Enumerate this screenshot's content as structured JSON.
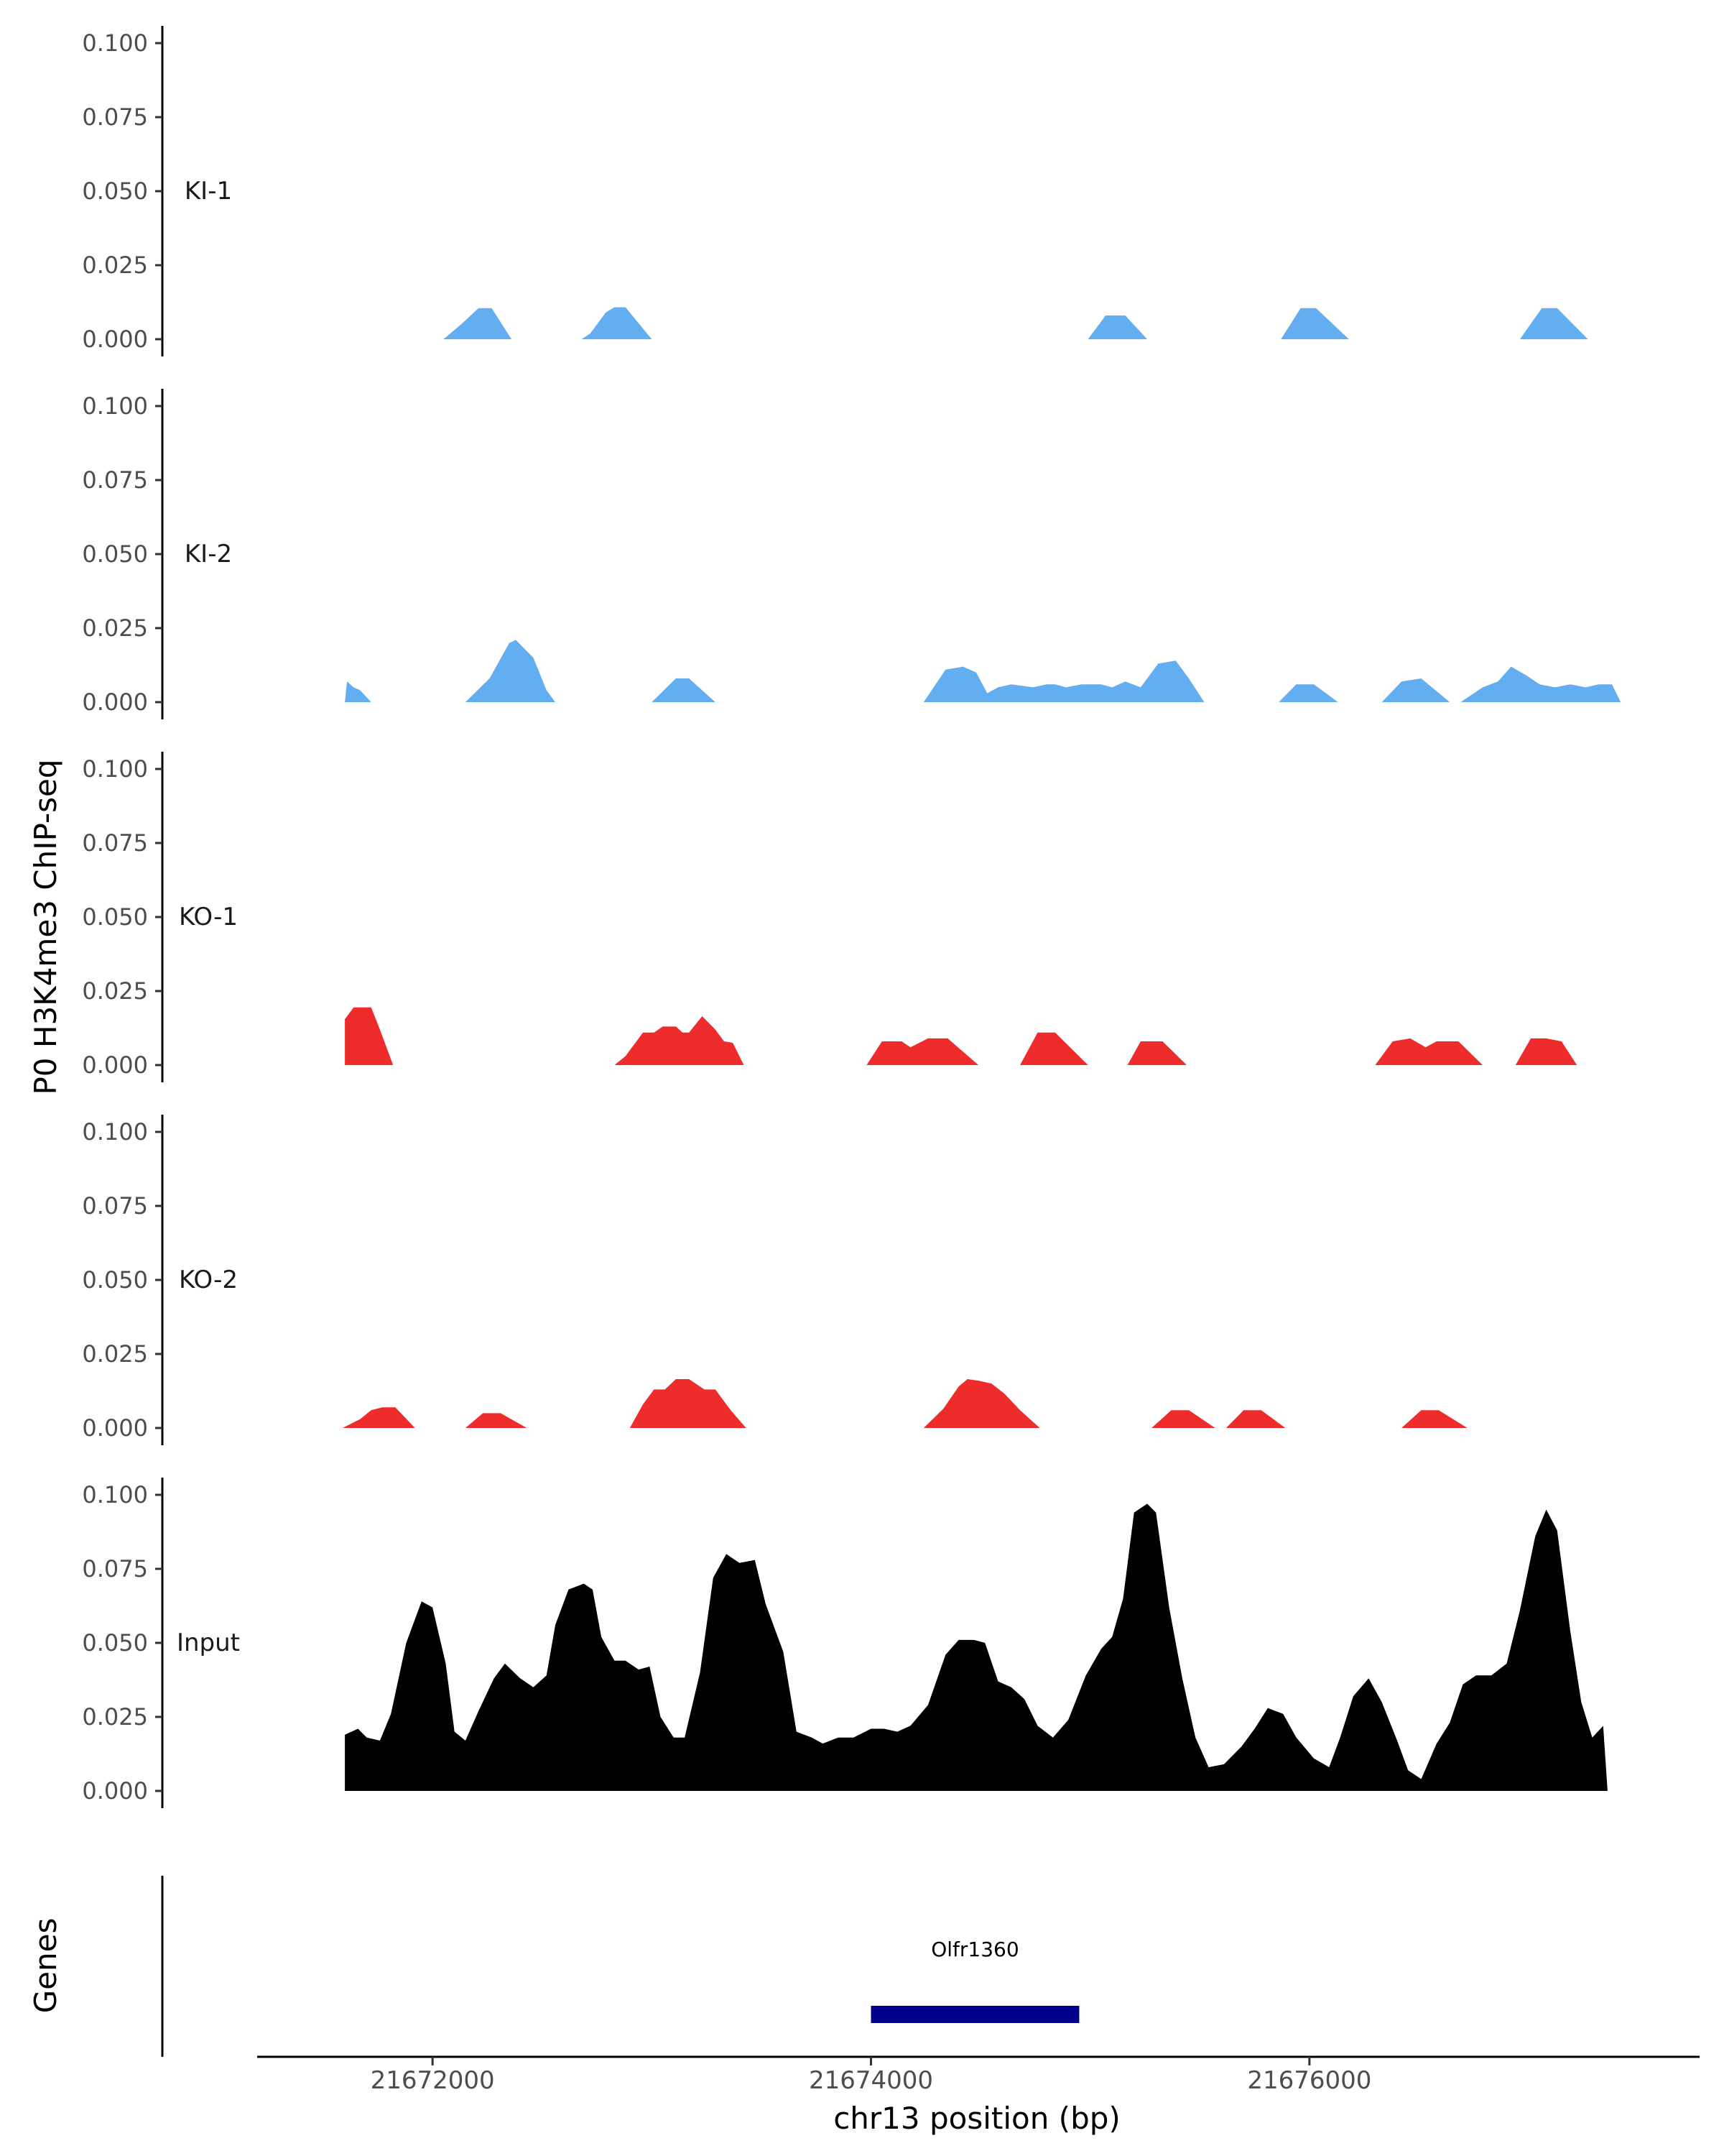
{
  "chart_data": {
    "type": "area",
    "ylabel": "P0 H3K4me3 ChIP-seq",
    "xlabel": "chr13 position (bp)",
    "y_ticks": [
      0.0,
      0.025,
      0.05,
      0.075,
      0.1
    ],
    "y_tick_labels": [
      "0.000",
      "0.025",
      "0.050",
      "0.075",
      "0.100"
    ],
    "ylim": [
      0,
      0.1
    ],
    "xlim": [
      21671200,
      21677760
    ],
    "x_ticks": [
      21672000,
      21674000,
      21676000
    ],
    "x_tick_labels": [
      "21672000",
      "21674000",
      "21676000"
    ],
    "colors": {
      "KI": "#63aef0",
      "KO": "#ee2c2c",
      "Input": "#000000",
      "gene": "#00008b"
    },
    "tracks": [
      {
        "name": "KI-1",
        "color": "#63aef0",
        "points": [
          [
            21671655,
            0
          ],
          [
            21672050,
            0
          ],
          [
            21672130,
            0.005
          ],
          [
            21672210,
            0.0105
          ],
          [
            21672270,
            0.0105
          ],
          [
            21672360,
            0
          ],
          [
            21672680,
            0
          ],
          [
            21672720,
            0.002
          ],
          [
            21672790,
            0.009
          ],
          [
            21672830,
            0.0108
          ],
          [
            21672880,
            0.0108
          ],
          [
            21673000,
            0
          ],
          [
            21674990,
            0
          ],
          [
            21675070,
            0.008
          ],
          [
            21675160,
            0.008
          ],
          [
            21675260,
            0
          ],
          [
            21675870,
            0
          ],
          [
            21675960,
            0.0105
          ],
          [
            21676030,
            0.0105
          ],
          [
            21676180,
            0
          ],
          [
            21676960,
            0
          ],
          [
            21677060,
            0.0105
          ],
          [
            21677130,
            0.0105
          ],
          [
            21677270,
            0
          ]
        ]
      },
      {
        "name": "KI-2",
        "color": "#63aef0",
        "points": [
          [
            21671600,
            0
          ],
          [
            21671610,
            0.007
          ],
          [
            21671640,
            0.005
          ],
          [
            21671670,
            0.004
          ],
          [
            21671720,
            0
          ],
          [
            21672150,
            0
          ],
          [
            21672260,
            0.008
          ],
          [
            21672350,
            0.02
          ],
          [
            21672380,
            0.021
          ],
          [
            21672460,
            0.015
          ],
          [
            21672520,
            0.004
          ],
          [
            21672560,
            0
          ],
          [
            21673000,
            0
          ],
          [
            21673110,
            0.008
          ],
          [
            21673170,
            0.008
          ],
          [
            21673290,
            0
          ],
          [
            21674240,
            0
          ],
          [
            21674340,
            0.011
          ],
          [
            21674420,
            0.012
          ],
          [
            21674480,
            0.01
          ],
          [
            21674530,
            0.003
          ],
          [
            21674580,
            0.005
          ],
          [
            21674640,
            0.006
          ],
          [
            21674740,
            0.005
          ],
          [
            21674800,
            0.006
          ],
          [
            21674840,
            0.006
          ],
          [
            21674890,
            0.005
          ],
          [
            21674960,
            0.006
          ],
          [
            21675050,
            0.006
          ],
          [
            21675100,
            0.005
          ],
          [
            21675160,
            0.007
          ],
          [
            21675230,
            0.005
          ],
          [
            21675310,
            0.013
          ],
          [
            21675390,
            0.014
          ],
          [
            21675450,
            0.008
          ],
          [
            21675520,
            0
          ],
          [
            21675860,
            0
          ],
          [
            21675940,
            0.006
          ],
          [
            21676020,
            0.006
          ],
          [
            21676130,
            0
          ],
          [
            21676330,
            0
          ],
          [
            21676420,
            0.007
          ],
          [
            21676510,
            0.008
          ],
          [
            21676640,
            0
          ],
          [
            21676690,
            0
          ],
          [
            21676790,
            0.005
          ],
          [
            21676860,
            0.007
          ],
          [
            21676920,
            0.012
          ],
          [
            21676990,
            0.009
          ],
          [
            21677050,
            0.006
          ],
          [
            21677120,
            0.005
          ],
          [
            21677190,
            0.006
          ],
          [
            21677260,
            0.005
          ],
          [
            21677320,
            0.006
          ],
          [
            21677380,
            0.006
          ],
          [
            21677420,
            0
          ]
        ]
      },
      {
        "name": "KO-1",
        "color": "#ee2c2c",
        "points": [
          [
            21671600,
            0
          ],
          [
            21671600,
            0.0155
          ],
          [
            21671640,
            0.0195
          ],
          [
            21671690,
            0.0195
          ],
          [
            21671720,
            0.0195
          ],
          [
            21671760,
            0.012
          ],
          [
            21671820,
            0
          ],
          [
            21672830,
            0
          ],
          [
            21672880,
            0.003
          ],
          [
            21672960,
            0.011
          ],
          [
            21673010,
            0.011
          ],
          [
            21673050,
            0.013
          ],
          [
            21673110,
            0.013
          ],
          [
            21673140,
            0.011
          ],
          [
            21673170,
            0.011
          ],
          [
            21673230,
            0.0165
          ],
          [
            21673290,
            0.012
          ],
          [
            21673330,
            0.008
          ],
          [
            21673370,
            0.0075
          ],
          [
            21673420,
            0
          ],
          [
            21673980,
            0
          ],
          [
            21674050,
            0.008
          ],
          [
            21674140,
            0.008
          ],
          [
            21674180,
            0.006
          ],
          [
            21674260,
            0.009
          ],
          [
            21674350,
            0.009
          ],
          [
            21674490,
            0
          ],
          [
            21674680,
            0
          ],
          [
            21674760,
            0.011
          ],
          [
            21674840,
            0.011
          ],
          [
            21674990,
            0
          ],
          [
            21675170,
            0
          ],
          [
            21675230,
            0.008
          ],
          [
            21675330,
            0.008
          ],
          [
            21675440,
            0
          ],
          [
            21676300,
            0
          ],
          [
            21676380,
            0.008
          ],
          [
            21676460,
            0.009
          ],
          [
            21676530,
            0.006
          ],
          [
            21676580,
            0.008
          ],
          [
            21676680,
            0.008
          ],
          [
            21676790,
            0
          ],
          [
            21676940,
            0
          ],
          [
            21677010,
            0.009
          ],
          [
            21677080,
            0.009
          ],
          [
            21677150,
            0.008
          ],
          [
            21677220,
            0
          ]
        ]
      },
      {
        "name": "KO-2",
        "color": "#ee2c2c",
        "points": [
          [
            21671590,
            0
          ],
          [
            21671670,
            0.003
          ],
          [
            21671720,
            0.006
          ],
          [
            21671770,
            0.007
          ],
          [
            21671830,
            0.007
          ],
          [
            21671920,
            0
          ],
          [
            21672150,
            0
          ],
          [
            21672230,
            0.005
          ],
          [
            21672310,
            0.005
          ],
          [
            21672430,
            0
          ],
          [
            21672900,
            0
          ],
          [
            21672960,
            0.008
          ],
          [
            21673010,
            0.013
          ],
          [
            21673060,
            0.013
          ],
          [
            21673110,
            0.0165
          ],
          [
            21673170,
            0.0165
          ],
          [
            21673240,
            0.013
          ],
          [
            21673290,
            0.013
          ],
          [
            21673360,
            0.006
          ],
          [
            21673430,
            0
          ],
          [
            21674240,
            0
          ],
          [
            21674330,
            0.0065
          ],
          [
            21674400,
            0.014
          ],
          [
            21674440,
            0.0165
          ],
          [
            21674490,
            0.016
          ],
          [
            21674550,
            0.015
          ],
          [
            21674610,
            0.0115
          ],
          [
            21674680,
            0.006
          ],
          [
            21674770,
            0
          ],
          [
            21675280,
            0
          ],
          [
            21675370,
            0.006
          ],
          [
            21675450,
            0.006
          ],
          [
            21675570,
            0
          ],
          [
            21675620,
            0
          ],
          [
            21675700,
            0.006
          ],
          [
            21675780,
            0.006
          ],
          [
            21675890,
            0
          ],
          [
            21676420,
            0
          ],
          [
            21676510,
            0.006
          ],
          [
            21676590,
            0.006
          ],
          [
            21676720,
            0
          ]
        ]
      },
      {
        "name": "Input",
        "color": "#000000",
        "points": [
          [
            21671600,
            0
          ],
          [
            21671600,
            0.019
          ],
          [
            21671660,
            0.021
          ],
          [
            21671700,
            0.018
          ],
          [
            21671760,
            0.017
          ],
          [
            21671810,
            0.026
          ],
          [
            21671880,
            0.05
          ],
          [
            21671950,
            0.064
          ],
          [
            21672000,
            0.062
          ],
          [
            21672060,
            0.043
          ],
          [
            21672100,
            0.02
          ],
          [
            21672150,
            0.017
          ],
          [
            21672210,
            0.027
          ],
          [
            21672280,
            0.038
          ],
          [
            21672330,
            0.043
          ],
          [
            21672400,
            0.038
          ],
          [
            21672460,
            0.035
          ],
          [
            21672520,
            0.039
          ],
          [
            21672560,
            0.056
          ],
          [
            21672620,
            0.068
          ],
          [
            21672690,
            0.07
          ],
          [
            21672730,
            0.068
          ],
          [
            21672770,
            0.052
          ],
          [
            21672830,
            0.044
          ],
          [
            21672880,
            0.044
          ],
          [
            21672940,
            0.041
          ],
          [
            21672990,
            0.042
          ],
          [
            21673040,
            0.025
          ],
          [
            21673100,
            0.018
          ],
          [
            21673150,
            0.018
          ],
          [
            21673220,
            0.04
          ],
          [
            21673280,
            0.072
          ],
          [
            21673340,
            0.08
          ],
          [
            21673400,
            0.077
          ],
          [
            21673470,
            0.078
          ],
          [
            21673520,
            0.063
          ],
          [
            21673600,
            0.047
          ],
          [
            21673660,
            0.02
          ],
          [
            21673730,
            0.018
          ],
          [
            21673780,
            0.016
          ],
          [
            21673850,
            0.018
          ],
          [
            21673920,
            0.018
          ],
          [
            21674000,
            0.021
          ],
          [
            21674060,
            0.021
          ],
          [
            21674120,
            0.02
          ],
          [
            21674180,
            0.022
          ],
          [
            21674260,
            0.029
          ],
          [
            21674340,
            0.046
          ],
          [
            21674400,
            0.051
          ],
          [
            21674470,
            0.051
          ],
          [
            21674520,
            0.05
          ],
          [
            21674580,
            0.037
          ],
          [
            21674640,
            0.035
          ],
          [
            21674700,
            0.031
          ],
          [
            21674760,
            0.022
          ],
          [
            21674830,
            0.018
          ],
          [
            21674900,
            0.024
          ],
          [
            21674980,
            0.039
          ],
          [
            21675050,
            0.048
          ],
          [
            21675100,
            0.052
          ],
          [
            21675150,
            0.065
          ],
          [
            21675200,
            0.094
          ],
          [
            21675260,
            0.097
          ],
          [
            21675300,
            0.094
          ],
          [
            21675360,
            0.062
          ],
          [
            21675420,
            0.038
          ],
          [
            21675480,
            0.018
          ],
          [
            21675540,
            0.008
          ],
          [
            21675610,
            0.009
          ],
          [
            21675690,
            0.015
          ],
          [
            21675750,
            0.021
          ],
          [
            21675810,
            0.028
          ],
          [
            21675880,
            0.026
          ],
          [
            21675940,
            0.018
          ],
          [
            21676020,
            0.011
          ],
          [
            21676090,
            0.008
          ],
          [
            21676140,
            0.018
          ],
          [
            21676200,
            0.032
          ],
          [
            21676270,
            0.038
          ],
          [
            21676330,
            0.03
          ],
          [
            21676400,
            0.017
          ],
          [
            21676450,
            0.007
          ],
          [
            21676510,
            0.004
          ],
          [
            21676580,
            0.016
          ],
          [
            21676640,
            0.023
          ],
          [
            21676700,
            0.036
          ],
          [
            21676760,
            0.039
          ],
          [
            21676830,
            0.039
          ],
          [
            21676900,
            0.043
          ],
          [
            21676960,
            0.061
          ],
          [
            21677030,
            0.086
          ],
          [
            21677080,
            0.095
          ],
          [
            21677130,
            0.088
          ],
          [
            21677190,
            0.054
          ],
          [
            21677240,
            0.03
          ],
          [
            21677290,
            0.018
          ],
          [
            21677340,
            0.022
          ],
          [
            21677360,
            0
          ]
        ]
      }
    ],
    "genes": {
      "label": "Genes",
      "items": [
        {
          "name": "Olfr1360",
          "start": 21674000,
          "end": 21674950
        }
      ]
    }
  }
}
